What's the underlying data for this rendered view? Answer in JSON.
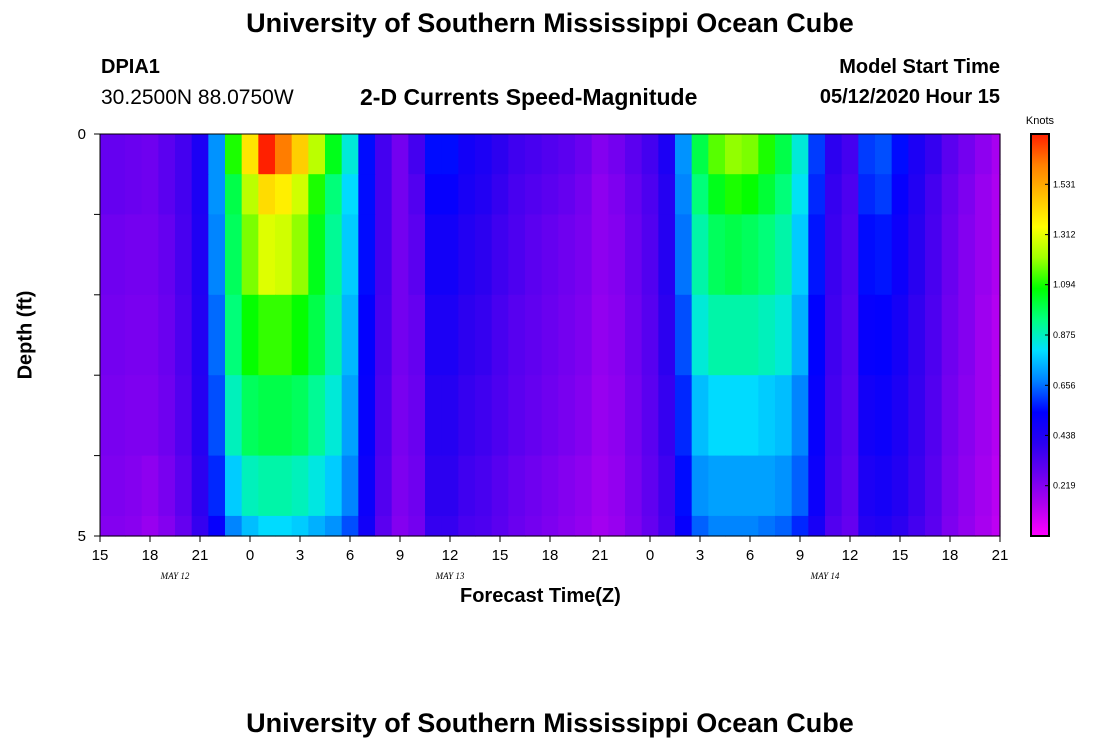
{
  "header": {
    "title": "University of Southern Mississippi Ocean Cube",
    "station_id": "DPIA1",
    "station_coords": "30.2500N 88.0750W",
    "plot_title": "2-D Currents Speed-Magnitude",
    "model_start_label": "Model Start Time",
    "model_start_time": "05/12/2020 Hour 15"
  },
  "footer": {
    "title": "University of Southern Mississippi Ocean Cube"
  },
  "chart_data": {
    "type": "heatmap",
    "xlabel": "Forecast Time(Z)",
    "ylabel": "Depth (ft)",
    "x_tick_labels": [
      "15",
      "18",
      "21",
      "0",
      "3",
      "6",
      "9",
      "12",
      "15",
      "18",
      "21",
      "0",
      "3",
      "6",
      "9",
      "12",
      "15",
      "18",
      "21"
    ],
    "date_labels": [
      {
        "label": "MAY 12",
        "at_hour_index": 1.5
      },
      {
        "label": "MAY 13",
        "at_hour_index": 7
      },
      {
        "label": "MAY 14",
        "at_hour_index": 14.5
      }
    ],
    "y_tick_labels": [
      "0",
      "5"
    ],
    "ylim": [
      0,
      5
    ],
    "x_hours": [
      15,
      69
    ],
    "colorbar": {
      "unit_label": "Knots",
      "tick_labels": [
        "1.531",
        "1.312",
        "1.094",
        "0.875",
        "0.656",
        "0.438",
        "0.219"
      ],
      "range": [
        0,
        1.75
      ],
      "colors": [
        "#ff00ff",
        "#b000f0",
        "#6a00f0",
        "#2a00f0",
        "#0000ff",
        "#0080ff",
        "#00e0ff",
        "#00ff80",
        "#00ff00",
        "#a0ff00",
        "#ffff00",
        "#ffc000",
        "#ff8000",
        "#ff2000"
      ]
    },
    "time_hours": [
      15,
      16,
      17,
      18,
      19,
      20,
      21,
      22,
      23,
      24,
      25,
      26,
      27,
      28,
      29,
      30,
      31,
      32,
      33,
      34,
      35,
      36,
      37,
      38,
      39,
      40,
      41,
      42,
      43,
      44,
      45,
      46,
      47,
      48,
      49,
      50,
      51,
      52,
      53,
      54,
      55,
      56,
      57,
      58,
      59,
      60,
      61,
      62,
      63,
      64,
      65,
      66,
      67,
      68,
      69
    ],
    "depth_layers_ft": [
      0.25,
      0.75,
      1.5,
      2.5,
      3.5,
      4.5,
      4.9
    ],
    "values_knots": [
      [
        0.28,
        0.28,
        0.27,
        0.26,
        0.3,
        0.35,
        0.45,
        0.7,
        1.1,
        1.4,
        1.75,
        1.62,
        1.45,
        1.25,
        1.05,
        0.85,
        0.55,
        0.35,
        0.25,
        0.35,
        0.55,
        0.55,
        0.48,
        0.45,
        0.4,
        0.36,
        0.34,
        0.32,
        0.3,
        0.27,
        0.22,
        0.25,
        0.3,
        0.35,
        0.45,
        0.7,
        1.0,
        1.15,
        1.2,
        1.18,
        1.1,
        1.0,
        0.85,
        0.6,
        0.4,
        0.35,
        0.6,
        0.62,
        0.55,
        0.45,
        0.38,
        0.3,
        0.25,
        0.2,
        0.15
      ],
      [
        0.28,
        0.28,
        0.27,
        0.26,
        0.3,
        0.35,
        0.45,
        0.7,
        1.0,
        1.25,
        1.42,
        1.38,
        1.28,
        1.1,
        0.95,
        0.8,
        0.55,
        0.35,
        0.25,
        0.32,
        0.52,
        0.52,
        0.46,
        0.43,
        0.38,
        0.34,
        0.32,
        0.3,
        0.28,
        0.25,
        0.2,
        0.23,
        0.28,
        0.33,
        0.42,
        0.68,
        0.95,
        1.05,
        1.1,
        1.08,
        1.02,
        0.95,
        0.82,
        0.58,
        0.38,
        0.33,
        0.58,
        0.6,
        0.52,
        0.43,
        0.35,
        0.28,
        0.23,
        0.18,
        0.14
      ],
      [
        0.26,
        0.26,
        0.25,
        0.25,
        0.28,
        0.34,
        0.44,
        0.68,
        0.98,
        1.18,
        1.3,
        1.28,
        1.2,
        1.05,
        0.92,
        0.78,
        0.55,
        0.35,
        0.25,
        0.3,
        0.48,
        0.48,
        0.43,
        0.4,
        0.36,
        0.33,
        0.3,
        0.28,
        0.26,
        0.24,
        0.2,
        0.22,
        0.27,
        0.32,
        0.42,
        0.66,
        0.9,
        0.98,
        1.0,
        0.98,
        0.95,
        0.9,
        0.78,
        0.56,
        0.37,
        0.32,
        0.55,
        0.56,
        0.5,
        0.41,
        0.34,
        0.27,
        0.22,
        0.18,
        0.14
      ],
      [
        0.25,
        0.25,
        0.24,
        0.24,
        0.27,
        0.33,
        0.43,
        0.65,
        0.95,
        1.08,
        1.12,
        1.12,
        1.08,
        1.0,
        0.9,
        0.75,
        0.53,
        0.34,
        0.25,
        0.28,
        0.45,
        0.45,
        0.4,
        0.38,
        0.34,
        0.31,
        0.29,
        0.27,
        0.25,
        0.23,
        0.19,
        0.21,
        0.26,
        0.31,
        0.4,
        0.62,
        0.85,
        0.9,
        0.9,
        0.9,
        0.88,
        0.85,
        0.74,
        0.54,
        0.36,
        0.31,
        0.52,
        0.53,
        0.47,
        0.39,
        0.33,
        0.26,
        0.22,
        0.17,
        0.13
      ],
      [
        0.24,
        0.24,
        0.23,
        0.23,
        0.26,
        0.32,
        0.42,
        0.62,
        0.88,
        0.98,
        1.0,
        1.0,
        0.98,
        0.92,
        0.85,
        0.72,
        0.52,
        0.33,
        0.24,
        0.27,
        0.42,
        0.42,
        0.38,
        0.36,
        0.33,
        0.3,
        0.28,
        0.26,
        0.24,
        0.22,
        0.18,
        0.2,
        0.25,
        0.3,
        0.38,
        0.58,
        0.76,
        0.8,
        0.8,
        0.8,
        0.78,
        0.76,
        0.68,
        0.52,
        0.35,
        0.3,
        0.48,
        0.5,
        0.45,
        0.38,
        0.32,
        0.25,
        0.21,
        0.17,
        0.13
      ],
      [
        0.23,
        0.23,
        0.22,
        0.2,
        0.24,
        0.3,
        0.4,
        0.58,
        0.78,
        0.88,
        0.9,
        0.9,
        0.88,
        0.84,
        0.78,
        0.68,
        0.5,
        0.32,
        0.23,
        0.26,
        0.4,
        0.4,
        0.36,
        0.34,
        0.31,
        0.28,
        0.26,
        0.24,
        0.22,
        0.2,
        0.17,
        0.19,
        0.24,
        0.29,
        0.36,
        0.55,
        0.7,
        0.72,
        0.72,
        0.72,
        0.72,
        0.7,
        0.64,
        0.5,
        0.34,
        0.29,
        0.45,
        0.47,
        0.43,
        0.37,
        0.31,
        0.24,
        0.2,
        0.16,
        0.12
      ],
      [
        0.22,
        0.22,
        0.21,
        0.18,
        0.22,
        0.28,
        0.38,
        0.52,
        0.68,
        0.76,
        0.8,
        0.8,
        0.78,
        0.74,
        0.7,
        0.62,
        0.48,
        0.3,
        0.22,
        0.25,
        0.38,
        0.38,
        0.34,
        0.33,
        0.3,
        0.27,
        0.25,
        0.23,
        0.21,
        0.19,
        0.16,
        0.18,
        0.23,
        0.28,
        0.35,
        0.52,
        0.64,
        0.68,
        0.68,
        0.68,
        0.66,
        0.64,
        0.58,
        0.46,
        0.32,
        0.28,
        0.42,
        0.44,
        0.4,
        0.35,
        0.3,
        0.23,
        0.19,
        0.15,
        0.11
      ]
    ]
  }
}
